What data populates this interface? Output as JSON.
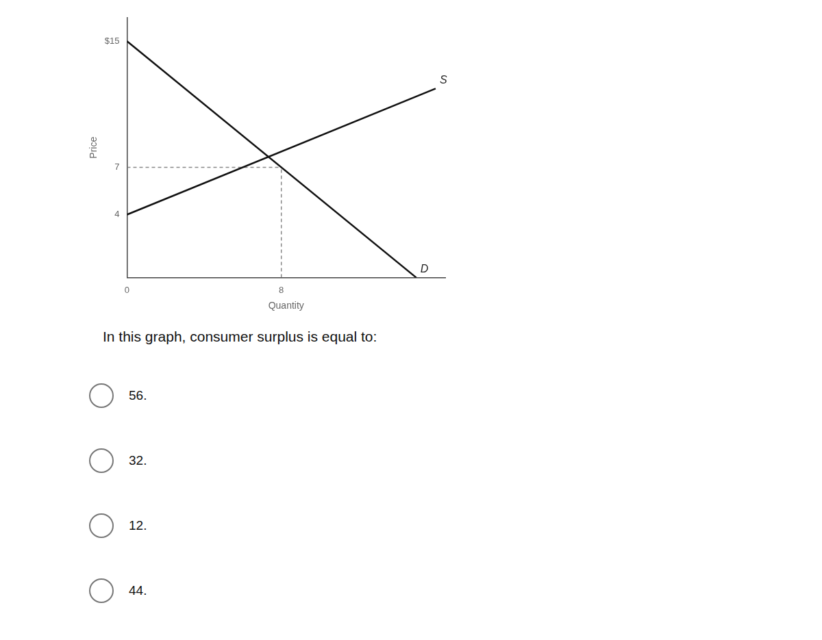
{
  "chart_data": {
    "type": "line",
    "x_label": "Quantity",
    "y_label": "Price",
    "series": [
      {
        "name": "S",
        "x": [
          0,
          16
        ],
        "values": [
          4,
          12
        ],
        "color": "#111111",
        "line_style": "solid"
      },
      {
        "name": "D",
        "x": [
          0,
          15
        ],
        "values": [
          15,
          0
        ],
        "color": "#111111",
        "line_style": "solid"
      },
      {
        "x": [
          0,
          8
        ],
        "values": [
          7,
          7
        ],
        "color": "#888888",
        "line_style": "dashed"
      },
      {
        "x": [
          8,
          8
        ],
        "values": [
          0,
          7
        ],
        "color": "#888888",
        "line_style": "dashed"
      }
    ],
    "xlim": [
      0,
      16.5
    ],
    "ylim": [
      0,
      16.5
    ],
    "xticks": [
      0,
      8
    ],
    "yticks": [
      4,
      7,
      {
        "value": 15,
        "label": "$15"
      }
    ],
    "grid": false,
    "question": "In this graph, consumer surplus is equal to:",
    "choices": [
      "56.",
      "32.",
      "12.",
      "44."
    ]
  }
}
